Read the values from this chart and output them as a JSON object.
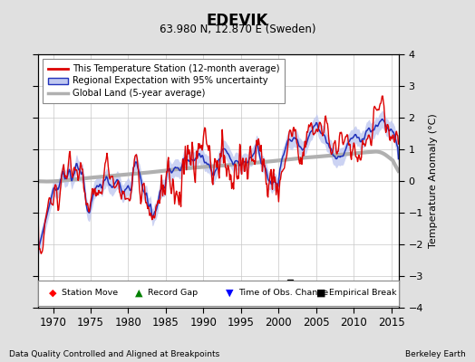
{
  "title": "EDEVIK",
  "subtitle": "63.980 N, 12.870 E (Sweden)",
  "ylabel": "Temperature Anomaly (°C)",
  "xlabel_left": "Data Quality Controlled and Aligned at Breakpoints",
  "xlabel_right": "Berkeley Earth",
  "ylim": [
    -4,
    4
  ],
  "xlim": [
    1968,
    2016
  ],
  "xticks": [
    1970,
    1975,
    1980,
    1985,
    1990,
    1995,
    2000,
    2005,
    2010,
    2015
  ],
  "yticks": [
    -4,
    -3,
    -2,
    -1,
    0,
    1,
    2,
    3,
    4
  ],
  "background_color": "#e0e0e0",
  "plot_bg_color": "#ffffff",
  "grid_color": "#c8c8c8",
  "red_line_color": "#dd0000",
  "blue_line_color": "#2233bb",
  "blue_fill_color": "#c0c8f0",
  "gray_line_color": "#b0b0b0",
  "empirical_break_year": 2001.5,
  "legend_entries": [
    "This Temperature Station (12-month average)",
    "Regional Expectation with 95% uncertainty",
    "Global Land (5-year average)"
  ]
}
